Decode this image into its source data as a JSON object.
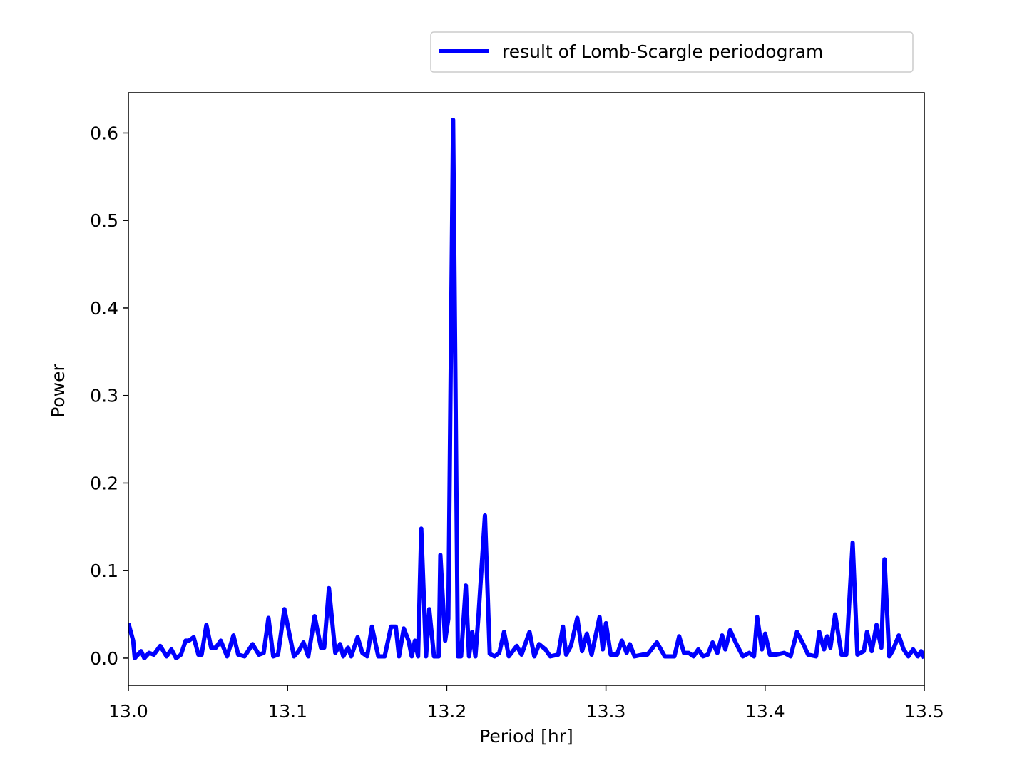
{
  "chart_data": {
    "type": "line",
    "xlabel": "Period [hr]",
    "ylabel": "Power",
    "legend": "upper right",
    "xlim": [
      13.0,
      13.5
    ],
    "xticks": [
      {
        "value": 13.0,
        "label": "13.0"
      },
      {
        "value": 13.1,
        "label": "13.1"
      },
      {
        "value": 13.2,
        "label": "13.2"
      },
      {
        "value": 13.3,
        "label": "13.3"
      },
      {
        "value": 13.4,
        "label": "13.4"
      },
      {
        "value": 13.5,
        "label": "13.5"
      }
    ],
    "ylim": [
      -0.031,
      0.646
    ],
    "yticks": [
      {
        "value": 0,
        "label": "0.0"
      },
      0.1,
      0.2,
      0.3,
      0.4,
      0.5,
      0.6
    ],
    "x": [
      13.0,
      13.003,
      13.004,
      13.008,
      13.01,
      13.013,
      13.016,
      13.02,
      13.024,
      13.027,
      13.03,
      13.033,
      13.036,
      13.038,
      13.041,
      13.044,
      13.046,
      13.049,
      13.052,
      13.055,
      13.058,
      13.062,
      13.066,
      13.069,
      13.073,
      13.078,
      13.082,
      13.085,
      13.088,
      13.091,
      13.094,
      13.098,
      13.102,
      13.104,
      13.107,
      13.11,
      13.113,
      13.117,
      13.121,
      13.123,
      13.126,
      13.13,
      13.133,
      13.135,
      13.138,
      13.14,
      13.144,
      13.147,
      13.15,
      13.153,
      13.157,
      13.161,
      13.165,
      13.168,
      13.17,
      13.173,
      13.176,
      13.178,
      13.18,
      13.182,
      13.184,
      13.187,
      13.189,
      13.192,
      13.195,
      13.196,
      13.199,
      13.201,
      13.204,
      13.207,
      13.209,
      13.212,
      13.214,
      13.216,
      13.218,
      13.22,
      13.224,
      13.227,
      13.23,
      13.233,
      13.236,
      13.239,
      13.244,
      13.247,
      13.252,
      13.255,
      13.258,
      13.262,
      13.265,
      13.27,
      13.273,
      13.275,
      13.278,
      13.282,
      13.285,
      13.288,
      13.291,
      13.296,
      13.298,
      13.3,
      13.303,
      13.307,
      13.31,
      13.313,
      13.315,
      13.318,
      13.323,
      13.326,
      13.332,
      13.337,
      13.343,
      13.346,
      13.349,
      13.352,
      13.355,
      13.358,
      13.361,
      13.364,
      13.367,
      13.37,
      13.373,
      13.375,
      13.378,
      13.382,
      13.386,
      13.39,
      13.393,
      13.395,
      13.398,
      13.4,
      13.403,
      13.407,
      13.412,
      13.416,
      13.42,
      13.424,
      13.427,
      13.432,
      13.434,
      13.437,
      13.439,
      13.441,
      13.444,
      13.448,
      13.451,
      13.455,
      13.458,
      13.462,
      13.464,
      13.467,
      13.47,
      13.473,
      13.475,
      13.478,
      13.48,
      13.484,
      13.487,
      13.49,
      13.493,
      13.496,
      13.498,
      13.5
    ],
    "series": [
      {
        "name": "result of Lomb-Scargle periodogram",
        "color": "#0000ff",
        "values": [
          0.04,
          0.02,
          0.0,
          0.008,
          0.0,
          0.006,
          0.004,
          0.014,
          0.002,
          0.01,
          0.0,
          0.004,
          0.02,
          0.02,
          0.024,
          0.004,
          0.004,
          0.038,
          0.012,
          0.012,
          0.02,
          0.002,
          0.026,
          0.004,
          0.002,
          0.016,
          0.004,
          0.006,
          0.046,
          0.002,
          0.004,
          0.056,
          0.02,
          0.002,
          0.008,
          0.018,
          0.002,
          0.048,
          0.012,
          0.012,
          0.08,
          0.006,
          0.016,
          0.002,
          0.012,
          0.002,
          0.024,
          0.006,
          0.002,
          0.036,
          0.002,
          0.002,
          0.036,
          0.036,
          0.002,
          0.034,
          0.02,
          0.002,
          0.02,
          0.002,
          0.148,
          0.002,
          0.056,
          0.002,
          0.002,
          0.118,
          0.02,
          0.045,
          0.615,
          0.002,
          0.002,
          0.083,
          0.002,
          0.03,
          0.002,
          0.05,
          0.163,
          0.005,
          0.002,
          0.006,
          0.03,
          0.002,
          0.014,
          0.004,
          0.03,
          0.002,
          0.016,
          0.01,
          0.002,
          0.004,
          0.036,
          0.004,
          0.014,
          0.046,
          0.008,
          0.028,
          0.004,
          0.047,
          0.01,
          0.04,
          0.004,
          0.004,
          0.02,
          0.006,
          0.016,
          0.002,
          0.004,
          0.004,
          0.018,
          0.002,
          0.002,
          0.025,
          0.006,
          0.006,
          0.002,
          0.01,
          0.002,
          0.004,
          0.018,
          0.006,
          0.026,
          0.01,
          0.032,
          0.016,
          0.002,
          0.006,
          0.002,
          0.047,
          0.01,
          0.028,
          0.004,
          0.004,
          0.006,
          0.002,
          0.03,
          0.016,
          0.004,
          0.002,
          0.03,
          0.01,
          0.025,
          0.012,
          0.05,
          0.004,
          0.004,
          0.132,
          0.004,
          0.008,
          0.03,
          0.008,
          0.038,
          0.012,
          0.113,
          0.002,
          0.008,
          0.026,
          0.01,
          0.002,
          0.01,
          0.002,
          0.008,
          0.0
        ]
      }
    ]
  }
}
